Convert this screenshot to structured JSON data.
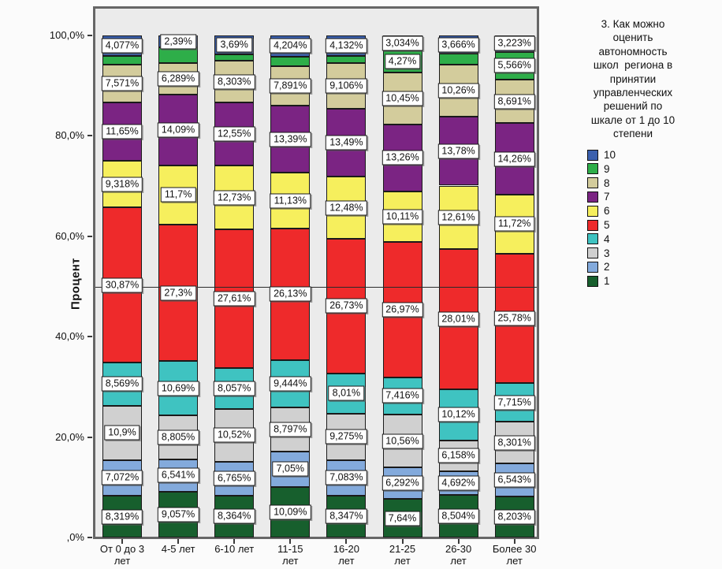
{
  "page": {
    "background": "#fbfbfb",
    "panel_background": "#ebebeb",
    "frame_color": "#666666"
  },
  "chart_data": {
    "type": "bar",
    "stacked": true,
    "title": "",
    "xlabel": "",
    "ylabel": "Процент",
    "ylim": [
      0,
      100
    ],
    "grid": false,
    "reference_line_y": 50,
    "value_label_decimal_separator": ",",
    "yticks": [
      {
        "value": 0,
        "label": ",0%"
      },
      {
        "value": 20,
        "label": "20,0%"
      },
      {
        "value": 40,
        "label": "40,0%"
      },
      {
        "value": 60,
        "label": "60,0%"
      },
      {
        "value": 80,
        "label": "80,0%"
      },
      {
        "value": 100,
        "label": "100,0%"
      }
    ],
    "categories": [
      [
        "От 0 до 3",
        "лет"
      ],
      [
        "4-5 лет"
      ],
      [
        "6-10 лет"
      ],
      [
        "11-15",
        "лет"
      ],
      [
        "16-20",
        "лет"
      ],
      [
        "21-25",
        "лет"
      ],
      [
        "26-30",
        "лет"
      ],
      [
        "Более 30",
        "лет"
      ]
    ],
    "series": [
      {
        "name": "1",
        "color": "#175f2d",
        "values": [
          8.319,
          9.057,
          8.364,
          10.09,
          8.347,
          7.64,
          8.504,
          8.203
        ],
        "labels": [
          "8,319%",
          "9,057%",
          "8,364%",
          "10,09%",
          "8,347%",
          "7,64%",
          "8,504%",
          "8,203%"
        ]
      },
      {
        "name": "2",
        "color": "#83aadc",
        "values": [
          7.072,
          6.541,
          6.765,
          7.05,
          7.083,
          6.292,
          4.692,
          6.543
        ],
        "labels": [
          "7,072%",
          "6,541%",
          "6,765%",
          "7,05%",
          "7,083%",
          "6,292%",
          "4,692%",
          "6,543%"
        ]
      },
      {
        "name": "3",
        "color": "#d0d0d0",
        "values": [
          10.9,
          8.805,
          10.52,
          8.797,
          9.275,
          10.56,
          6.158,
          8.301
        ],
        "labels": [
          "10,9%",
          "8,805%",
          "10,52%",
          "8,797%",
          "9,275%",
          "10,56%",
          "6,158%",
          "8,301%"
        ]
      },
      {
        "name": "4",
        "color": "#3fc3c1",
        "values": [
          8.569,
          10.69,
          8.057,
          9.444,
          8.01,
          7.416,
          10.12,
          7.715
        ],
        "labels": [
          "8,569%",
          "10,69%",
          "8,057%",
          "9,444%",
          "8,01%",
          "7,416%",
          "10,12%",
          "7,715%"
        ]
      },
      {
        "name": "5",
        "color": "#ee2a2b",
        "values": [
          30.87,
          27.3,
          27.61,
          26.13,
          26.73,
          26.97,
          28.01,
          25.78
        ],
        "labels": [
          "30,87%",
          "27,3%",
          "27,61%",
          "26,13%",
          "26,73%",
          "26,97%",
          "28,01%",
          "25,78%"
        ]
      },
      {
        "name": "6",
        "color": "#f6ef5d",
        "values": [
          9.318,
          11.7,
          12.73,
          11.13,
          12.48,
          10.11,
          12.61,
          11.72
        ],
        "labels": [
          "9,318%",
          "11,7%",
          "12,73%",
          "11,13%",
          "12,48%",
          "10,11%",
          "12,61%",
          "11,72%"
        ]
      },
      {
        "name": "7",
        "color": "#7b2483",
        "values": [
          11.65,
          14.09,
          12.55,
          13.39,
          13.49,
          13.26,
          13.78,
          14.26
        ],
        "labels": [
          "11,65%",
          "14,09%",
          "12,55%",
          "13,39%",
          "13,49%",
          "13,26%",
          "13,78%",
          "14,26%"
        ]
      },
      {
        "name": "8",
        "color": "#d3cc9c",
        "values": [
          7.571,
          6.289,
          8.303,
          7.891,
          9.106,
          10.45,
          10.26,
          8.691
        ],
        "labels": [
          "7,571%",
          "6,289%",
          "8,303%",
          "7,891%",
          "9,106%",
          "10,45%",
          "10,26%",
          "8,691%"
        ]
      },
      {
        "name": "9",
        "color": "#2eae49",
        "values": [
          1.654,
          3.138,
          1.411,
          1.874,
          1.347,
          4.27,
          2.196,
          5.566
        ],
        "labels": [
          null,
          null,
          null,
          null,
          null,
          "4,27%",
          null,
          "5,566%"
        ]
      },
      {
        "name": "10",
        "color": "#3b60ae",
        "values": [
          4.077,
          2.39,
          3.69,
          4.204,
          4.132,
          3.034,
          3.666,
          3.223
        ],
        "labels": [
          "4,077%",
          "2,39%",
          "3,69%",
          "4,204%",
          "4,132%",
          "3,034%",
          "3,666%",
          "3,223%"
        ]
      }
    ],
    "legend": {
      "position": "right",
      "title_lines": [
        "3. Как можно",
        "оценить",
        "автономность",
        "школ  региона в",
        "принятии",
        "управленческих",
        "решений по",
        "шкале от 1 до 10",
        "степени"
      ],
      "items": [
        {
          "label": "10",
          "color": "#3b60ae"
        },
        {
          "label": "9",
          "color": "#2eae49"
        },
        {
          "label": "8",
          "color": "#d3cc9c"
        },
        {
          "label": "7",
          "color": "#7b2483"
        },
        {
          "label": "6",
          "color": "#f6ef5d"
        },
        {
          "label": "5",
          "color": "#ee2a2b"
        },
        {
          "label": "4",
          "color": "#3fc3c1"
        },
        {
          "label": "3",
          "color": "#d0d0d0"
        },
        {
          "label": "2",
          "color": "#83aadc"
        },
        {
          "label": "1",
          "color": "#175f2d"
        }
      ]
    }
  }
}
